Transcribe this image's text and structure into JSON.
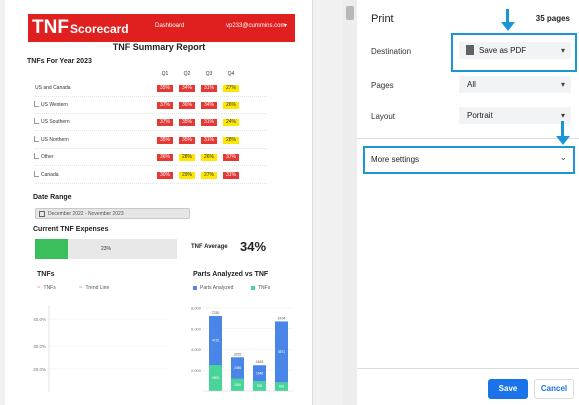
{
  "report": {
    "logo_main": "TNF",
    "logo_sub": "Scorecard",
    "nav_dashboard": "Dashboard",
    "user_email": "vp233@cummins.com",
    "title": "TNF Summary Report",
    "year_title": "TNFs For Year 2023",
    "quarters": [
      "Q1",
      "Q2",
      "Q3",
      "Q4"
    ],
    "rows": [
      {
        "label": "US and Canada",
        "values": [
          "35%",
          "34%",
          "31%",
          "27%"
        ],
        "colors": [
          "red",
          "red",
          "red",
          "yellow"
        ]
      },
      {
        "label": "US Western",
        "values": [
          "37%",
          "36%",
          "34%",
          "26%"
        ],
        "colors": [
          "red",
          "red",
          "red",
          "yellow"
        ]
      },
      {
        "label": "US Southern",
        "values": [
          "37%",
          "35%",
          "31%",
          "24%"
        ],
        "colors": [
          "red",
          "red",
          "red",
          "yellow"
        ]
      },
      {
        "label": "US Northern",
        "values": [
          "35%",
          "35%",
          "31%",
          "28%"
        ],
        "colors": [
          "red",
          "red",
          "red",
          "yellow"
        ]
      },
      {
        "label": "Other",
        "values": [
          "36%",
          "28%",
          "26%",
          "37%"
        ],
        "colors": [
          "red",
          "yellow",
          "yellow",
          "red"
        ]
      },
      {
        "label": "Canada",
        "values": [
          "30%",
          "29%",
          "27%",
          "31%"
        ],
        "colors": [
          "red",
          "yellow",
          "yellow",
          "red"
        ]
      }
    ],
    "date_title": "Date Range",
    "date_value": "December 2022 - November 2023",
    "expenses_title": "Current TNF Expenses",
    "expenses_pct_text": "23%",
    "expenses_fraction": 0.23,
    "avg_label": "TNF Average",
    "avg_value": "34%"
  },
  "chart_data": [
    {
      "type": "line",
      "title": "TNFs",
      "legend": [
        "TNFs",
        "Trend Line"
      ],
      "yticks": [
        "40.0%",
        "30.0%",
        "20.0%"
      ],
      "series": []
    },
    {
      "type": "bar",
      "title": "Parts Analyzed vs TNF",
      "legend": [
        "Parts Analyzed",
        "TNFs"
      ],
      "colors": {
        "parts": "#4a86e8",
        "tnf": "#49d49a"
      },
      "yticks": [
        "8,000",
        "6,000",
        "4,000",
        "2,000"
      ],
      "ylim": [
        0,
        8000
      ],
      "bars": [
        {
          "total": "7230",
          "parts": 4725,
          "tnf": 2505,
          "parts_label": "4725",
          "tnf_label": "2505"
        },
        {
          "total": "3252",
          "parts": 2086,
          "tnf": 1166,
          "parts_label": "2086",
          "tnf_label": "1166"
        },
        {
          "total": "2483",
          "parts": 1548,
          "tnf": 935,
          "parts_label": "1548",
          "tnf_label": "935"
        },
        {
          "total": "6704",
          "parts": 5871,
          "tnf": 833,
          "parts_label": "5871",
          "tnf_label": "833"
        }
      ]
    }
  ],
  "settings": {
    "title": "Print",
    "pages_count": "35 pages",
    "destination_label": "Destination",
    "destination_value": "Save as PDF",
    "pages_label": "Pages",
    "pages_value": "All",
    "layout_label": "Layout",
    "layout_value": "Portrait",
    "more_settings": "More settings",
    "save": "Save",
    "cancel": "Cancel",
    "highlight_color": "#1a96d6"
  }
}
